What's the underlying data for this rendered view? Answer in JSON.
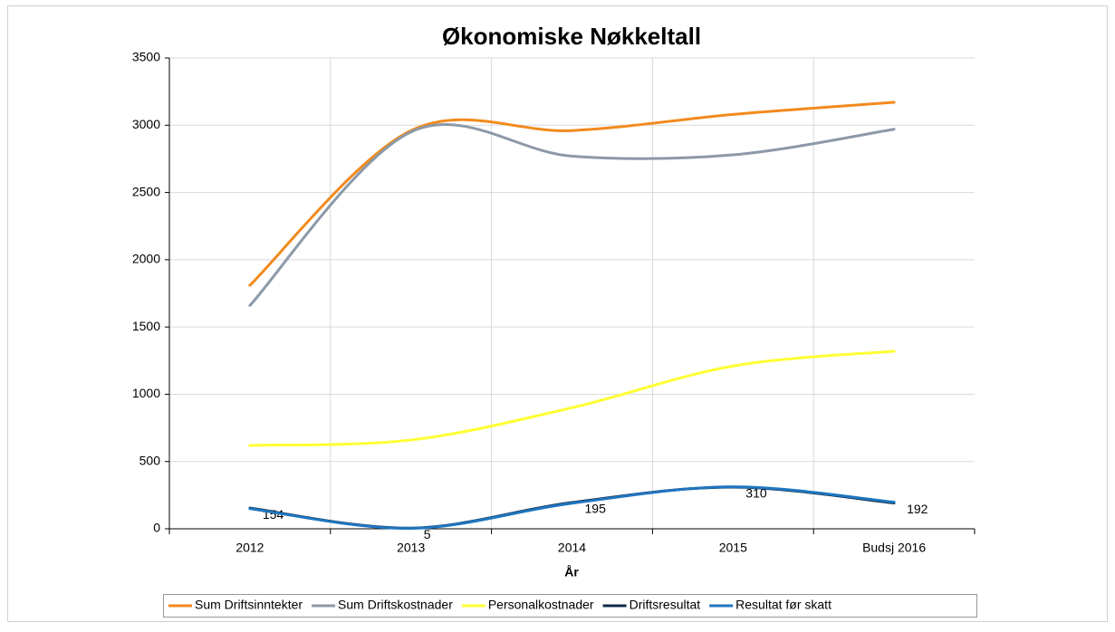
{
  "chart_data": {
    "type": "line",
    "title": "Økonomiske Nøkkeltall",
    "x_label": "År",
    "categories": [
      "2012",
      "2013",
      "2014",
      "2015",
      "Budsj 2016"
    ],
    "ylim": [
      0,
      3500
    ],
    "yticks": [
      0,
      500,
      1000,
      1500,
      2000,
      2500,
      3000,
      3500
    ],
    "grid": true,
    "smooth": true,
    "legend": "bottom",
    "series": [
      {
        "name": "Sum Driftsinntekter",
        "color": "#f28a1e",
        "values": [
          1810,
          2960,
          2960,
          3080,
          3170
        ]
      },
      {
        "name": "Sum Driftskostnader",
        "color": "#8c99a8",
        "values": [
          1660,
          2950,
          2770,
          2780,
          2970
        ]
      },
      {
        "name": "Personalkostnader",
        "color": "#ffff33",
        "values": [
          620,
          660,
          900,
          1210,
          1320
        ]
      },
      {
        "name": "Driftsresultat",
        "color": "#0e2b48",
        "values": [
          154,
          5,
          195,
          310,
          192
        ],
        "data_labels": true
      },
      {
        "name": "Resultat før skatt",
        "color": "#1f75bf",
        "values": [
          150,
          3,
          190,
          312,
          198
        ]
      }
    ]
  }
}
